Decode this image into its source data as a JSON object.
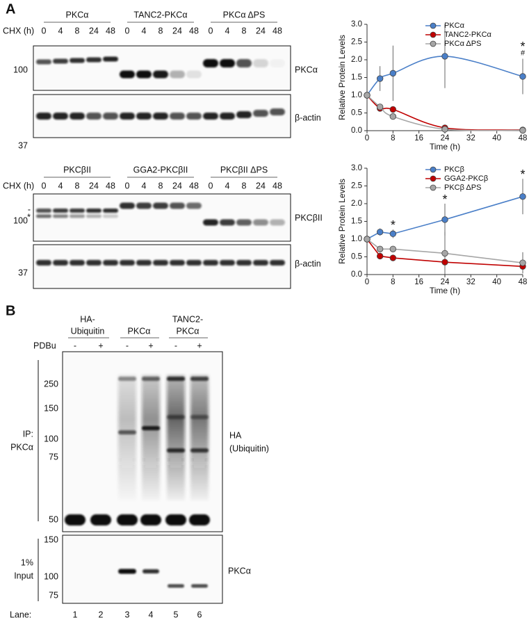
{
  "panel_a": {
    "label": "A",
    "blot_top": {
      "chx_label": "CHX (h)",
      "groups": [
        {
          "name": "PKCα",
          "timepoints": [
            "0",
            "4",
            "8",
            "24",
            "48"
          ]
        },
        {
          "name": "TANC2-PKCα",
          "timepoints": [
            "0",
            "4",
            "8",
            "24",
            "48"
          ]
        },
        {
          "name": "PKCα ΔPS",
          "timepoints": [
            "0",
            "4",
            "8",
            "24",
            "48"
          ]
        }
      ],
      "markers": [
        "100",
        "37"
      ],
      "target_label": "PKCα",
      "loading_label": "β-actin"
    },
    "blot_bottom": {
      "chx_label": "CHX (h)",
      "groups": [
        {
          "name": "PKCβII",
          "timepoints": [
            "0",
            "4",
            "8",
            "24",
            "48"
          ]
        },
        {
          "name": "GGA2-PKCβII",
          "timepoints": [
            "0",
            "4",
            "8",
            "24",
            "48"
          ]
        },
        {
          "name": "PKCβII ΔPS",
          "timepoints": [
            "0",
            "4",
            "8",
            "24",
            "48"
          ]
        }
      ],
      "band_notes": [
        "-",
        "*"
      ],
      "markers": [
        "100",
        "37"
      ],
      "target_label": "PKCβII",
      "loading_label": "β-actin"
    }
  },
  "chart_data": [
    {
      "type": "line",
      "y_label": "Relative Protein Levels",
      "x_label": "Time (h)",
      "x": [
        0,
        4,
        8,
        24,
        48
      ],
      "xlim": [
        0,
        48
      ],
      "xticks": [
        0,
        8,
        16,
        24,
        32,
        40,
        48
      ],
      "ylim": [
        0,
        3
      ],
      "yticks": [
        {
          "value": 0,
          "label": "0.0"
        },
        0.5,
        {
          "value": 1,
          "label": "1.0"
        },
        1.5,
        {
          "value": 2,
          "label": "2.0"
        },
        2.5,
        {
          "value": 3,
          "label": "3.0"
        }
      ],
      "smooth": true,
      "legend": "upper right",
      "series": [
        {
          "name": "PKCα",
          "color": "#4a7fc8",
          "values": [
            1.0,
            1.47,
            1.62,
            2.1,
            1.53
          ],
          "errors": [
            null,
            0.35,
            0.78,
            0.9,
            0.5
          ]
        },
        {
          "name": "TANC2-PKCα",
          "color": "#c00000",
          "values": [
            1.0,
            0.63,
            0.6,
            0.08,
            0.02
          ]
        },
        {
          "name": "PKCα ΔPS",
          "color": "#a6a6a6",
          "values": [
            1.0,
            0.67,
            0.4,
            0.04,
            0.01
          ]
        }
      ],
      "annotations": [
        {
          "text": "*",
          "x": 48,
          "color": "#c00000"
        },
        {
          "text": "#",
          "x": 48,
          "color": "#8c8c8c"
        }
      ]
    },
    {
      "type": "line",
      "y_label": "Relative Protein Levels",
      "x_label": "Time (h)",
      "x": [
        0,
        4,
        8,
        24,
        48
      ],
      "xlim": [
        0,
        48
      ],
      "xticks": [
        0,
        8,
        16,
        24,
        32,
        40,
        48
      ],
      "ylim": [
        0,
        3
      ],
      "yticks": [
        {
          "value": 0,
          "label": "0.0"
        },
        0.5,
        {
          "value": 1,
          "label": "1.0"
        },
        1.5,
        {
          "value": 2,
          "label": "2.0"
        },
        2.5,
        {
          "value": 3,
          "label": "3.0"
        }
      ],
      "smooth": false,
      "legend": "upper right",
      "series": [
        {
          "name": "PKCβ",
          "color": "#4a7fc8",
          "values": [
            1.0,
            1.2,
            1.15,
            1.55,
            2.2
          ],
          "errors": [
            null,
            0.1,
            0.12,
            0.45,
            0.5
          ]
        },
        {
          "name": "GGA2-PKCβ",
          "color": "#c00000",
          "values": [
            1.0,
            0.52,
            0.47,
            0.35,
            0.23
          ]
        },
        {
          "name": "PKCβ ΔPS",
          "color": "#a6a6a6",
          "values": [
            1.0,
            0.72,
            0.72,
            0.6,
            0.33
          ],
          "errors": [
            null,
            0.05,
            0.05,
            0.6,
            0.3
          ]
        }
      ],
      "annotations": [
        {
          "text": "*",
          "x": 8,
          "color": "#c00000"
        },
        {
          "text": "*",
          "x": 24,
          "color": "#c00000"
        },
        {
          "text": "*",
          "x": 48,
          "color": "#c00000"
        }
      ]
    }
  ],
  "panel_b": {
    "label": "B",
    "groups": [
      {
        "name": [
          "HA-",
          "Ubiquitin"
        ]
      },
      {
        "name": [
          "PKCα"
        ]
      },
      {
        "name": [
          "TANC2-",
          "PKCα"
        ]
      }
    ],
    "treatment_label": "PDBu",
    "treatment": [
      "-",
      "+",
      "-",
      "+",
      "-",
      "+"
    ],
    "ip_blot": {
      "side_label": [
        "IP:",
        "PKCα"
      ],
      "markers": [
        "250",
        "150",
        "100",
        "75",
        "50"
      ],
      "target_label": [
        "HA",
        "(Ubiquitin)"
      ]
    },
    "input_blot": {
      "side_label": [
        "1%",
        "Input"
      ],
      "markers": [
        "150",
        "100",
        "75"
      ],
      "target_label": "PKCα"
    },
    "lane_label": "Lane:",
    "lanes": [
      "1",
      "2",
      "3",
      "4",
      "5",
      "6"
    ]
  }
}
